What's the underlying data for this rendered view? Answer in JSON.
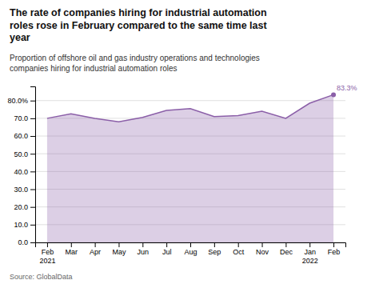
{
  "chart_data": {
    "type": "area",
    "title": "The rate of companies hiring for industrial automation\nroles rose in February compared to the same time last\nyear",
    "subtitle": "Proportion of offshore oil and gas industry operations and technologies\ncompanies hiring for industrial automation roles",
    "source": "Source: GlobalData",
    "categories": [
      "Feb\n2021",
      "Mar",
      "Apr",
      "May",
      "Jun",
      "Jul",
      "Aug",
      "Sep",
      "Oct",
      "Nov",
      "Dec",
      "Jan\n2022",
      "Feb"
    ],
    "values": [
      70.0,
      72.5,
      70.0,
      68.0,
      70.5,
      74.5,
      75.5,
      71.0,
      71.5,
      74.0,
      70.0,
      78.5,
      83.3
    ],
    "color": "#8b5fa8",
    "annotations": [
      {
        "text": "83.3%",
        "x": "Feb",
        "y": 83.3
      }
    ],
    "ylim": [
      0,
      88
    ],
    "yticks": [
      {
        "value": 0,
        "label": "0.0"
      },
      {
        "value": 10,
        "label": "10.0"
      },
      {
        "value": 20,
        "label": "20.0"
      },
      {
        "value": 30,
        "label": "30.0"
      },
      {
        "value": 40,
        "label": "40.0"
      },
      {
        "value": 50,
        "label": "50.0"
      },
      {
        "value": 60,
        "label": "60.0"
      },
      {
        "value": 70,
        "label": "70.0"
      },
      {
        "value": 80,
        "label": "80.0%"
      }
    ],
    "grid": true
  }
}
